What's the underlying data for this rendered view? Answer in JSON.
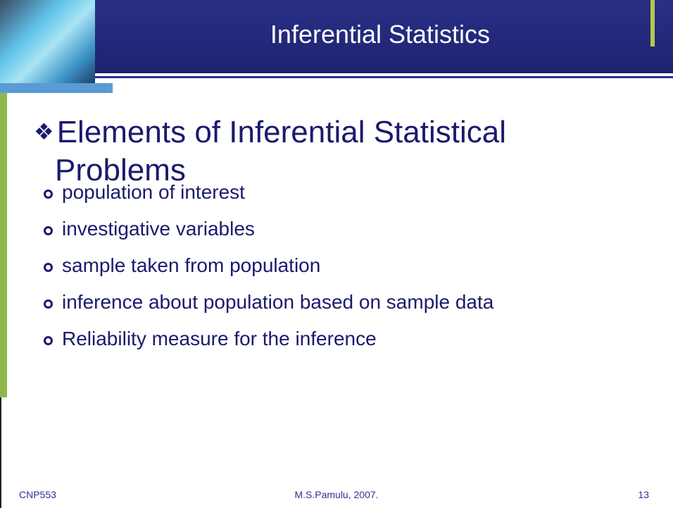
{
  "header": {
    "title": "Inferential Statistics"
  },
  "body": {
    "heading": "Elements of Inferential Statistical Problems",
    "items": [
      "population of interest",
      "investigative variables",
      "sample taken from population",
      "inference about population based on sample data",
      "Reliability measure for the inference"
    ]
  },
  "footer": {
    "left": "CNP553",
    "center": "M.S.Pamulu, 2007.",
    "right": "13"
  }
}
